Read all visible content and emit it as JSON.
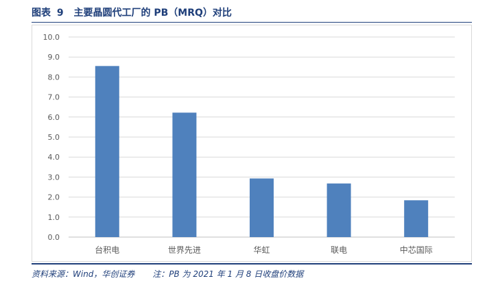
{
  "figure": {
    "label": "图表",
    "number": "9",
    "title": "主要晶圆代工厂的 PB（MRQ）对比"
  },
  "source": {
    "text": "资料来源：Wind，华创证券",
    "note": "注：PB 为 2021 年 1 月 8 日收盘价数据"
  },
  "colors": {
    "bar": "#4f81bd",
    "grid": "#d9d9d9",
    "axis_text": "#595959",
    "title": "#1f3f7a"
  },
  "chart_data": {
    "type": "bar",
    "categories": [
      "台积电",
      "世界先进",
      "华虹",
      "联电",
      "中芯国际"
    ],
    "values": [
      8.55,
      6.22,
      2.93,
      2.68,
      1.84
    ],
    "title": "",
    "xlabel": "",
    "ylabel": "",
    "ylim": [
      0,
      10
    ],
    "yticks": [
      "0.0",
      "1.0",
      "2.0",
      "3.0",
      "4.0",
      "5.0",
      "6.0",
      "7.0",
      "8.0",
      "9.0",
      "10.0"
    ],
    "grid": true,
    "legend": "none"
  }
}
